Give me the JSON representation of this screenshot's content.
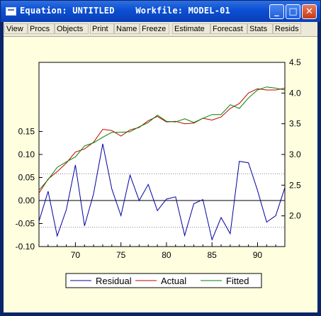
{
  "window": {
    "title": "Equation: UNTITLED    Workfile: MODEL-01",
    "buttons": {
      "minimize": "_",
      "maximize": "□",
      "close": "✕"
    }
  },
  "toolbar": {
    "items": [
      "View",
      "Procs",
      "Objects",
      "Print",
      "Name",
      "Freeze",
      "Estimate",
      "Forecast",
      "Stats",
      "Resids"
    ]
  },
  "colors": {
    "residual": "#0000a0",
    "actual": "#c00000",
    "fitted": "#008000",
    "panel": "#ffffe0",
    "titlebar": "#0b4fd3"
  },
  "chart_data": {
    "type": "line",
    "x": [
      66,
      67,
      68,
      69,
      70,
      71,
      72,
      73,
      74,
      75,
      76,
      77,
      78,
      79,
      80,
      81,
      82,
      83,
      84,
      85,
      86,
      87,
      88,
      89,
      90,
      91,
      92,
      93
    ],
    "xlim": [
      66,
      93
    ],
    "x_ticks": [
      "70",
      "75",
      "80",
      "85",
      "90"
    ],
    "x_tick_values": [
      70,
      75,
      80,
      85,
      90
    ],
    "left_axis": {
      "ylim": [
        -0.1,
        0.3
      ],
      "ticks": [
        -0.1,
        -0.05,
        0.0,
        0.05,
        0.1,
        0.15
      ],
      "tick_labels": [
        "-0.10",
        "-0.05",
        "0.00",
        "0.05",
        "0.10",
        "0.15"
      ],
      "reference_lines": {
        "zero": 0.0,
        "std_upper": 0.058,
        "std_lower": -0.058
      }
    },
    "right_axis": {
      "ylim": [
        1.5,
        4.5
      ],
      "ticks": [
        2.0,
        2.5,
        3.0,
        3.5,
        4.0,
        4.5
      ],
      "tick_labels": [
        "2.0",
        "2.5",
        "3.0",
        "3.5",
        "4.0",
        "4.5"
      ]
    },
    "series": [
      {
        "name": "Residual",
        "axis": "left",
        "values": [
          -0.045,
          0.02,
          -0.077,
          -0.02,
          0.077,
          -0.055,
          0.015,
          0.123,
          0.025,
          -0.033,
          0.055,
          0.0,
          0.035,
          -0.022,
          0.003,
          0.008,
          -0.076,
          -0.007,
          0.002,
          -0.085,
          -0.037,
          -0.072,
          0.085,
          0.082,
          0.022,
          -0.047,
          -0.033,
          0.028
        ]
      },
      {
        "name": "Actual",
        "axis": "right",
        "values": [
          2.37,
          2.6,
          2.72,
          2.86,
          3.04,
          3.09,
          3.2,
          3.41,
          3.39,
          3.3,
          3.4,
          3.44,
          3.55,
          3.62,
          3.53,
          3.54,
          3.5,
          3.51,
          3.59,
          3.56,
          3.61,
          3.75,
          3.83,
          4.0,
          4.07,
          4.05,
          4.05,
          4.08
        ]
      },
      {
        "name": "Fitted",
        "axis": "right",
        "values": [
          2.42,
          2.59,
          2.79,
          2.88,
          2.96,
          3.14,
          3.19,
          3.28,
          3.36,
          3.36,
          3.37,
          3.45,
          3.52,
          3.64,
          3.54,
          3.53,
          3.58,
          3.52,
          3.59,
          3.65,
          3.65,
          3.81,
          3.75,
          3.92,
          4.05,
          4.1,
          4.08,
          4.05
        ]
      }
    ],
    "legend": {
      "placement": "bottom-center",
      "entries": [
        "Residual",
        "Actual",
        "Fitted"
      ]
    },
    "grid": false
  }
}
